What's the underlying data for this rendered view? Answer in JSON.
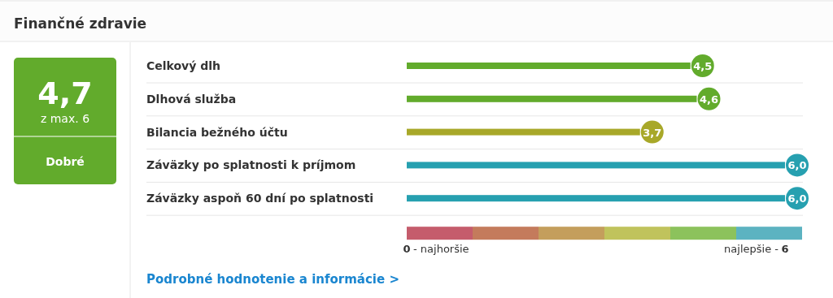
{
  "chart_data": {
    "type": "bar",
    "orientation": "horizontal",
    "title": "Finančné zdravie",
    "categories": [
      "Celkový dlh",
      "Dlhová služba",
      "Bilancia bežného účtu",
      "Záväzky po splatnosti k príjmom",
      "Záväzky aspoň 60 dní po splatnosti"
    ],
    "values": [
      4.5,
      4.6,
      3.7,
      6.0,
      6.0
    ],
    "colors": [
      "#62ab2c",
      "#62ab2c",
      "#a8a829",
      "#26a0b0",
      "#26a0b0"
    ],
    "value_labels": [
      "4,5",
      "4,6",
      "3,7",
      "6,0",
      "6,0"
    ],
    "xlim": [
      0,
      6
    ],
    "xticks": [
      0,
      6
    ],
    "annotations": [
      "4,7",
      "z max. 6",
      "Dobré",
      "Podrobné hodnotenie a informácie >",
      "- najhoršie",
      "najlepšie -"
    ]
  }
}
